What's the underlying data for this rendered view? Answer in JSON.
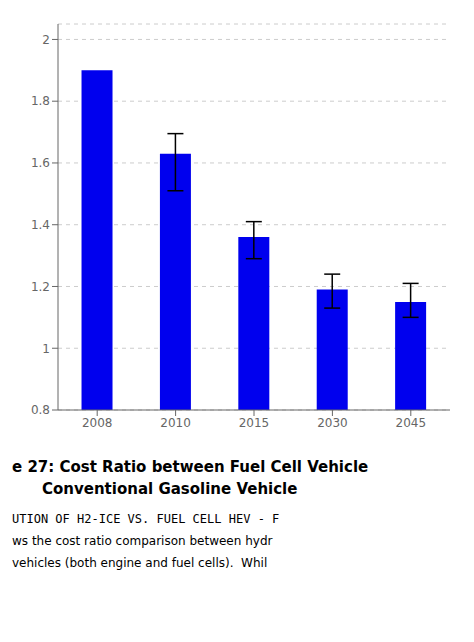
{
  "chart_data": {
    "type": "bar",
    "categories": [
      "2008",
      "2010",
      "2015",
      "2030",
      "2045"
    ],
    "values": [
      1.9,
      1.63,
      1.36,
      1.19,
      1.15
    ],
    "yerr_low": [
      0.0,
      0.12,
      0.07,
      0.06,
      0.05
    ],
    "yerr_high": [
      0.0,
      0.065,
      0.05,
      0.05,
      0.06
    ],
    "color": "#0000EE",
    "ylim": [
      0.8,
      2.05
    ],
    "yticks": [
      0.8,
      1,
      1.2,
      1.4,
      1.6,
      1.8,
      2
    ],
    "grid": true,
    "annotations": [
      "e 27: Cost Ratio between Fuel Cell Vehicle",
      "Conventional Gasoline Vehicle",
      "UTION OF H2-ICE VS. FUEL CELL HEV - F",
      "ws the cost ratio comparison between hydr",
      "vehicles (both engine and fuel cells).  Whil"
    ]
  }
}
